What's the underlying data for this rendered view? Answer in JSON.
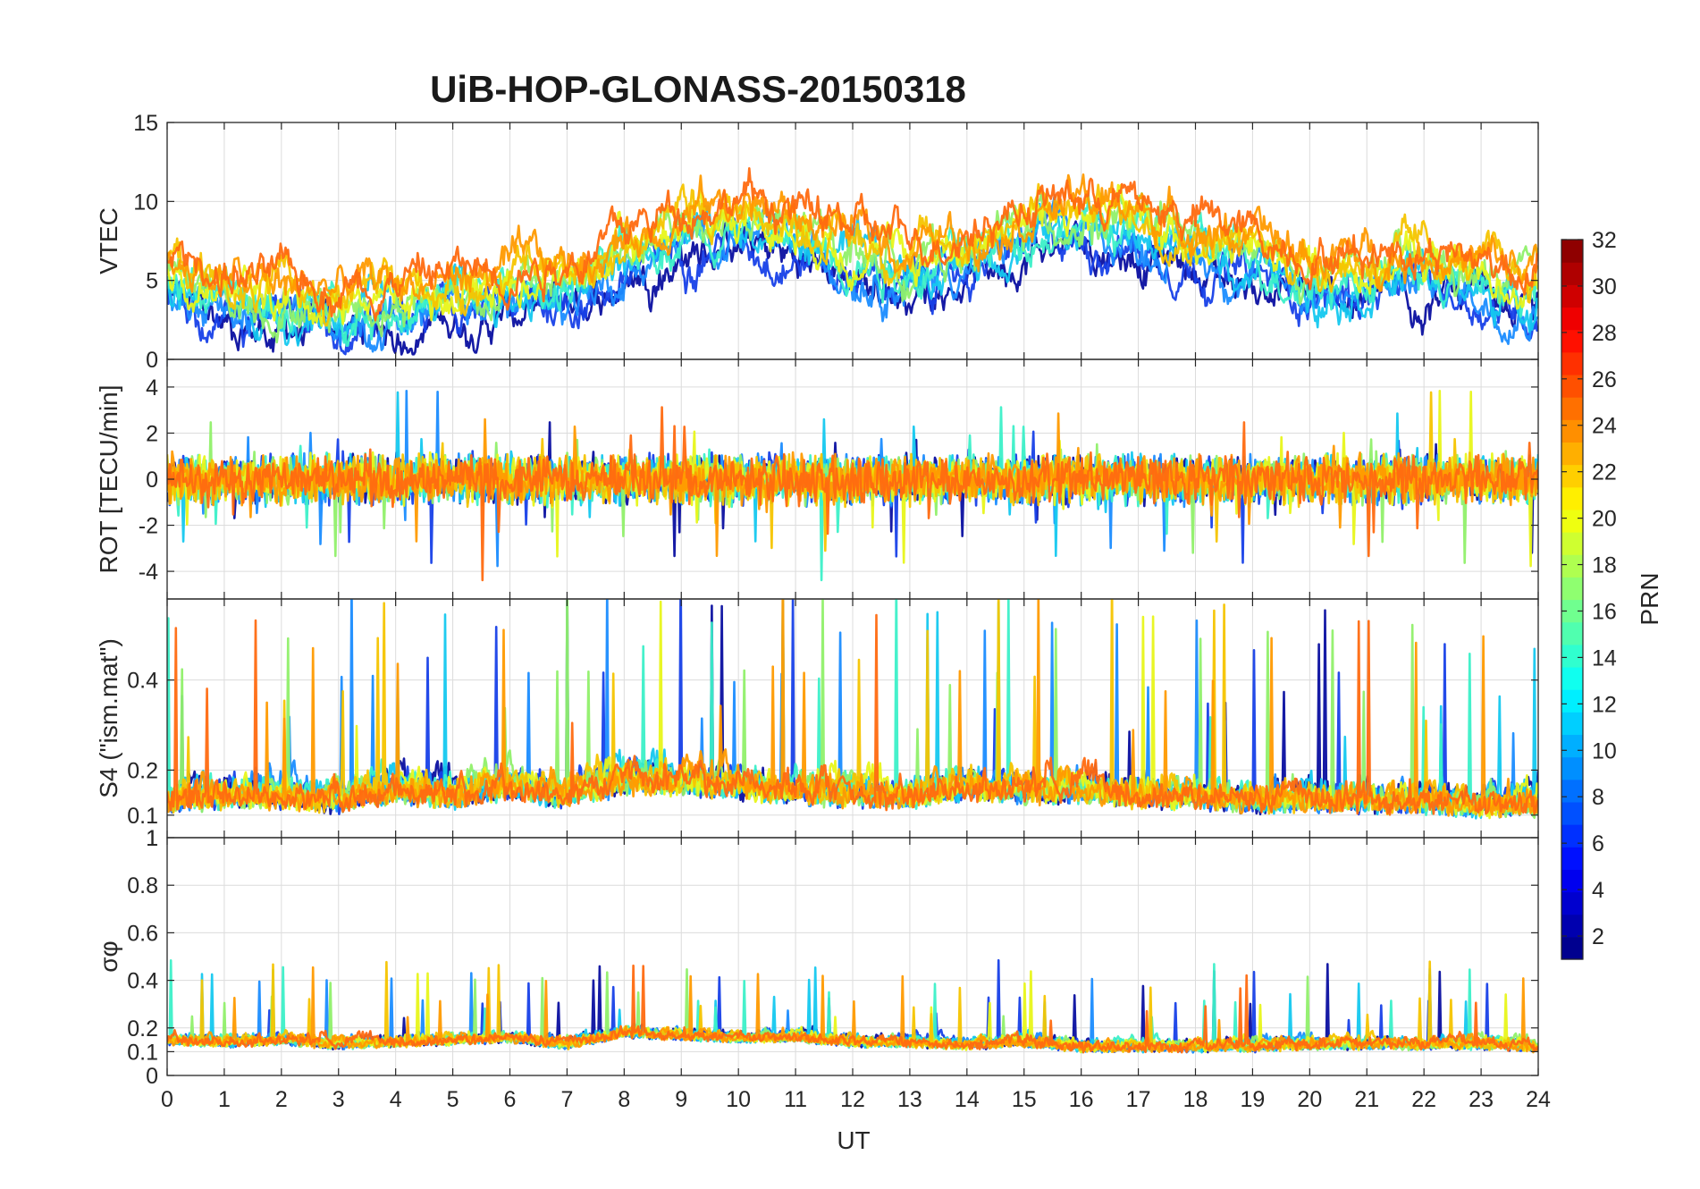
{
  "chart_data": {
    "type": "line",
    "title": "UiB-HOP-GLONASS-20150318",
    "xlabel": "UT",
    "xlim": [
      0,
      24
    ],
    "xticks": [
      "0",
      "1",
      "2",
      "3",
      "4",
      "5",
      "6",
      "7",
      "8",
      "9",
      "10",
      "11",
      "12",
      "13",
      "14",
      "15",
      "16",
      "17",
      "18",
      "19",
      "20",
      "21",
      "22",
      "23",
      "24"
    ],
    "grid": true,
    "panels": [
      {
        "ylabel": "VTEC",
        "ylim": [
          0,
          15
        ],
        "yticks": [
          {
            "v": 0,
            "label": "0"
          },
          {
            "v": 5,
            "label": "5"
          },
          {
            "v": 10,
            "label": "10"
          },
          {
            "v": 15,
            "label": "15"
          }
        ],
        "baseline": [
          5.5,
          4.0,
          3.5,
          3.5,
          3.8,
          4.2,
          4.5,
          5.0,
          6.5,
          8.5,
          9.0,
          8.0,
          7.0,
          6.0,
          7.0,
          8.5,
          9.0,
          8.5,
          7.5,
          6.5,
          5.5,
          5.5,
          6.0,
          5.0,
          4.5
        ],
        "spread": 2.2
      },
      {
        "ylabel": "ROT [TECU/min]",
        "ylim": [
          -5.2,
          5.2
        ],
        "yticks": [
          {
            "v": -4,
            "label": "-4"
          },
          {
            "v": -2,
            "label": "-2"
          },
          {
            "v": 0,
            "label": "0"
          },
          {
            "v": 2,
            "label": "2"
          },
          {
            "v": 4,
            "label": "4"
          }
        ],
        "baseline": [
          0,
          0,
          0,
          0,
          0,
          0,
          0,
          0,
          0,
          0,
          0,
          0,
          0,
          0,
          0,
          0,
          0,
          0,
          0,
          0,
          0,
          0,
          0,
          0,
          0
        ],
        "spread": 0.9
      },
      {
        "ylabel": "S4 (\"ism.mat\")",
        "ylim": [
          0.05,
          0.58
        ],
        "yticks": [
          {
            "v": 0.1,
            "label": "0.1"
          },
          {
            "v": 0.2,
            "label": "0.2"
          },
          {
            "v": 0.4,
            "label": "0.4"
          }
        ],
        "baseline": [
          0.12,
          0.13,
          0.13,
          0.12,
          0.14,
          0.13,
          0.15,
          0.13,
          0.16,
          0.16,
          0.15,
          0.14,
          0.13,
          0.13,
          0.15,
          0.14,
          0.14,
          0.13,
          0.13,
          0.12,
          0.12,
          0.12,
          0.12,
          0.11,
          0.11
        ],
        "spread": 0.07
      },
      {
        "ylabel": "σφ",
        "ylim": [
          0,
          1
        ],
        "yticks": [
          {
            "v": 0,
            "label": "0"
          },
          {
            "v": 0.1,
            "label": "0.1"
          },
          {
            "v": 0.2,
            "label": "0.2"
          },
          {
            "v": 0.4,
            "label": "0.4"
          },
          {
            "v": 0.6,
            "label": "0.6"
          },
          {
            "v": 0.8,
            "label": "0.8"
          },
          {
            "v": 1,
            "label": "1"
          }
        ],
        "baseline": [
          0.14,
          0.13,
          0.14,
          0.12,
          0.13,
          0.14,
          0.15,
          0.12,
          0.17,
          0.16,
          0.15,
          0.15,
          0.13,
          0.13,
          0.12,
          0.13,
          0.11,
          0.11,
          0.11,
          0.11,
          0.12,
          0.12,
          0.12,
          0.12,
          0.11
        ],
        "spread": 0.05
      }
    ],
    "panel_join_label": "1",
    "colorbar": {
      "label": "PRN",
      "range": [
        1,
        32
      ],
      "ticks": [
        "2",
        "4",
        "6",
        "8",
        "10",
        "12",
        "14",
        "16",
        "18",
        "20",
        "22",
        "24",
        "26",
        "28",
        "30",
        "32"
      ],
      "colormap": "jet"
    },
    "series_prn": [
      2,
      5,
      8,
      11,
      13,
      16,
      19,
      21,
      23,
      24
    ],
    "series_colors": [
      "#0a0fa0",
      "#1740e8",
      "#1a8cff",
      "#14c8ef",
      "#3cf0c8",
      "#90f06a",
      "#e8f51a",
      "#f5c400",
      "#ff9a00",
      "#ff6a10"
    ]
  }
}
